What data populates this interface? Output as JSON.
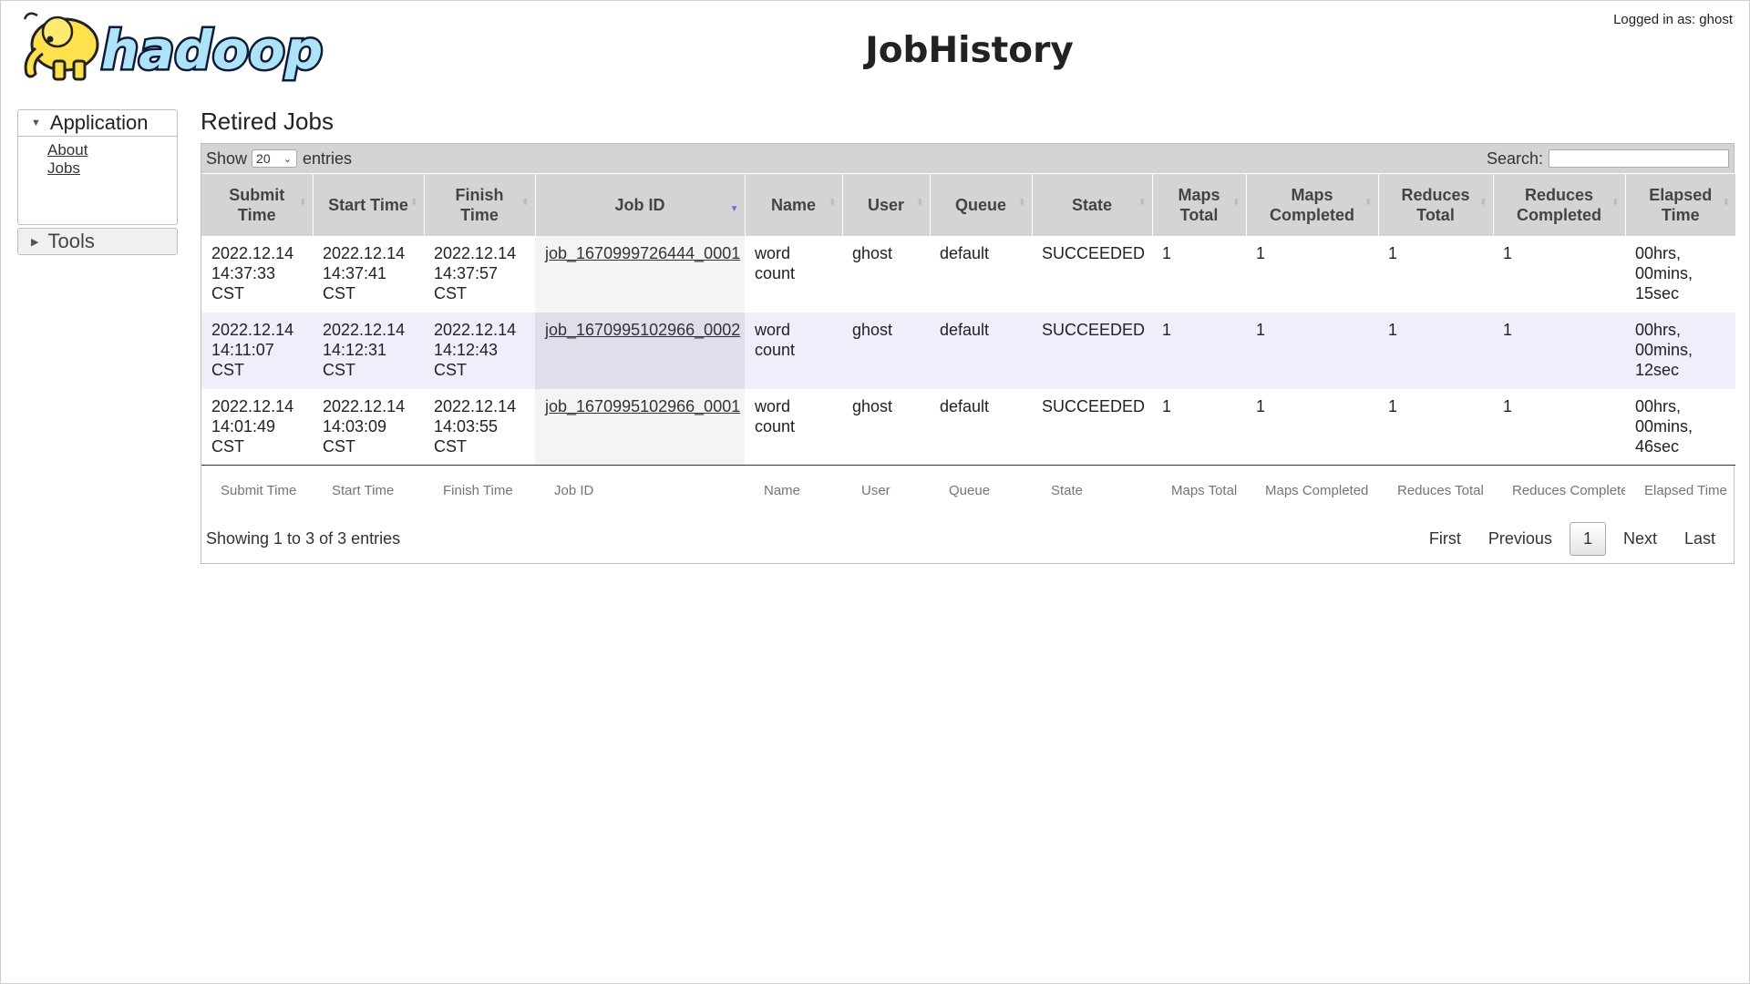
{
  "header": {
    "title": "JobHistory",
    "logo_text": "hadoop",
    "logged_in": "Logged in as: ghost"
  },
  "sidebar": {
    "application": {
      "label": "Application",
      "links": [
        "About",
        "Jobs"
      ]
    },
    "tools": {
      "label": "Tools"
    }
  },
  "main": {
    "section_title": "Retired Jobs",
    "show_label": "Show",
    "entries_label": "entries",
    "page_length": "20",
    "search_label": "Search:",
    "search_value": "",
    "columns": [
      "Submit Time",
      "Start Time",
      "Finish Time",
      "Job ID",
      "Name",
      "User",
      "Queue",
      "State",
      "Maps Total",
      "Maps Completed",
      "Reduces Total",
      "Reduces Completed",
      "Elapsed Time"
    ],
    "sorted_column": "Job ID",
    "rows": [
      {
        "submit": "2022.12.14 14:37:33 CST",
        "start": "2022.12.14 14:37:41 CST",
        "finish": "2022.12.14 14:37:57 CST",
        "job_id": "job_1670999726444_0001",
        "name": "word count",
        "user": "ghost",
        "queue": "default",
        "state": "SUCCEEDED",
        "maps_total": "1",
        "maps_completed": "1",
        "reduces_total": "1",
        "reduces_completed": "1",
        "elapsed": "00hrs, 00mins, 15sec"
      },
      {
        "submit": "2022.12.14 14:11:07 CST",
        "start": "2022.12.14 14:12:31 CST",
        "finish": "2022.12.14 14:12:43 CST",
        "job_id": "job_1670995102966_0002",
        "name": "word count",
        "user": "ghost",
        "queue": "default",
        "state": "SUCCEEDED",
        "maps_total": "1",
        "maps_completed": "1",
        "reduces_total": "1",
        "reduces_completed": "1",
        "elapsed": "00hrs, 00mins, 12sec"
      },
      {
        "submit": "2022.12.14 14:01:49 CST",
        "start": "2022.12.14 14:03:09 CST",
        "finish": "2022.12.14 14:03:55 CST",
        "job_id": "job_1670995102966_0001",
        "name": "word count",
        "user": "ghost",
        "queue": "default",
        "state": "SUCCEEDED",
        "maps_total": "1",
        "maps_completed": "1",
        "reduces_total": "1",
        "reduces_completed": "1",
        "elapsed": "00hrs, 00mins, 46sec"
      }
    ],
    "filter_placeholders": [
      "Submit Time",
      "Start Time",
      "Finish Time",
      "Job ID",
      "Name",
      "User",
      "Queue",
      "State",
      "Maps Total",
      "Maps Completed",
      "Reduces Total",
      "Reduces Completed",
      "Elapsed Time"
    ],
    "info": "Showing 1 to 3 of 3 entries",
    "pager": {
      "first": "First",
      "previous": "Previous",
      "current": "1",
      "next": "Next",
      "last": "Last"
    }
  },
  "colors": {
    "header_bg": "#d4d4d4",
    "even_row": "#eeeffb",
    "sort_active": "#6a70d8",
    "logo_blue": "#aee3f7",
    "logo_elephant": "#ffe14d"
  }
}
